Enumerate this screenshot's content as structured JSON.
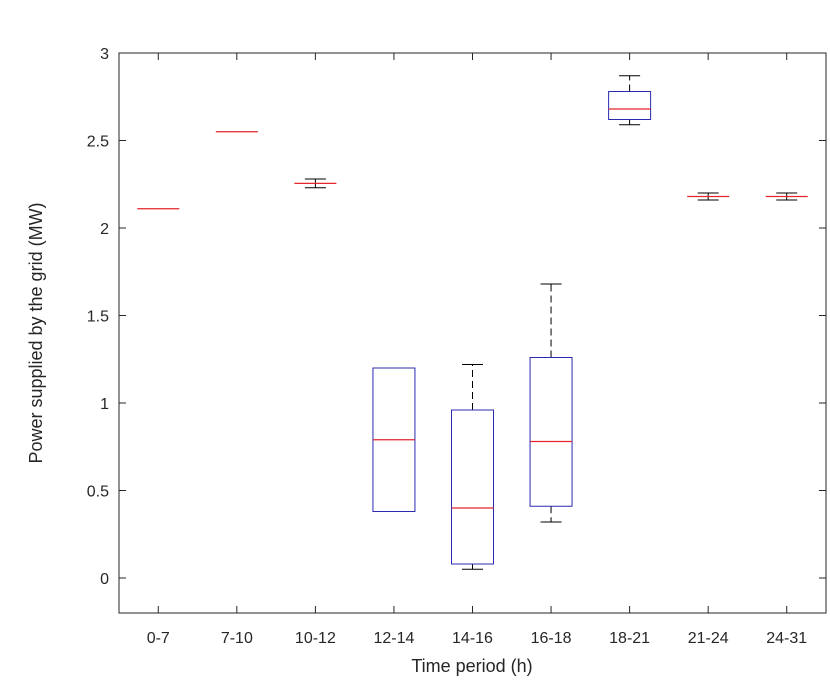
{
  "chart_data": {
    "type": "boxplot",
    "title": "",
    "xlabel": "Time period (h)",
    "ylabel": "Power supplied by the grid (MW)",
    "ylim": [
      -0.2,
      3
    ],
    "yticks": [
      0,
      0.5,
      1,
      1.5,
      2,
      2.5,
      3
    ],
    "ytick_labels": [
      "0",
      "0.5",
      "1",
      "1.5",
      "2",
      "2.5",
      "3"
    ],
    "grid": false,
    "categories": [
      "0-7",
      "7-10",
      "10-12",
      "12-14",
      "14-16",
      "16-18",
      "18-21",
      "21-24",
      "24-31"
    ],
    "boxes": [
      {
        "min": 2.11,
        "q1": 2.11,
        "median": 2.11,
        "q3": 2.11,
        "max": 2.11
      },
      {
        "min": 2.55,
        "q1": 2.55,
        "median": 2.55,
        "q3": 2.55,
        "max": 2.55
      },
      {
        "min": 2.23,
        "q1": 2.255,
        "median": 2.255,
        "q3": 2.255,
        "max": 2.28
      },
      {
        "min": 0.38,
        "q1": 0.38,
        "median": 0.79,
        "q3": 1.2,
        "max": 1.2
      },
      {
        "min": 0.05,
        "q1": 0.08,
        "median": 0.4,
        "q3": 0.96,
        "max": 1.22
      },
      {
        "min": 0.32,
        "q1": 0.41,
        "median": 0.78,
        "q3": 1.26,
        "max": 1.68
      },
      {
        "min": 2.59,
        "q1": 2.62,
        "median": 2.68,
        "q3": 2.78,
        "max": 2.87
      },
      {
        "min": 2.16,
        "q1": 2.18,
        "median": 2.18,
        "q3": 2.18,
        "max": 2.2
      },
      {
        "min": 2.16,
        "q1": 2.18,
        "median": 2.18,
        "q3": 2.18,
        "max": 2.2
      }
    ],
    "colors": {
      "box": "#2b2bb0",
      "median": "#e3262e",
      "whisker": "#000000",
      "axis": "#262626"
    }
  }
}
